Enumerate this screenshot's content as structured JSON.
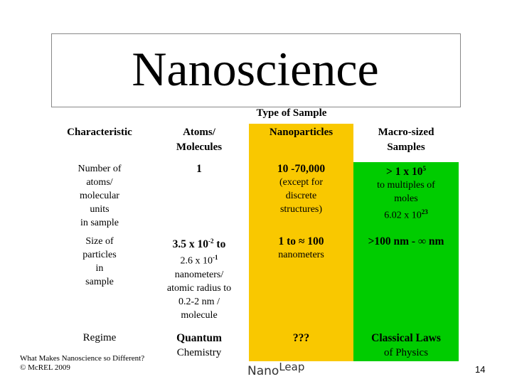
{
  "title": "Nanoscience",
  "table": {
    "group_header": "Type of Sample",
    "rows": [
      [
        [
          [
            "Characteristic"
          ]
        ],
        [
          [
            "Atoms/"
          ],
          [
            "Molecules"
          ]
        ],
        [
          [
            "Nanoparticles"
          ]
        ],
        [
          [
            "Macro-sized"
          ],
          [
            "Samples"
          ]
        ]
      ],
      [
        [
          [
            "Number of"
          ],
          [
            "atoms/"
          ],
          [
            "molecular"
          ],
          [
            "units"
          ],
          [
            "in sample"
          ]
        ],
        [
          [
            "1"
          ]
        ],
        [
          [
            "10 -70,000"
          ],
          [
            "(except for"
          ],
          [
            "discrete"
          ],
          [
            "structures)"
          ]
        ],
        [
          [
            "> 1 x 10",
            "5"
          ],
          [
            "to multiples of"
          ],
          [
            "moles"
          ],
          [
            "6.02 x 10",
            "23"
          ]
        ]
      ],
      [
        [
          [
            "Size of"
          ],
          [
            "particles"
          ],
          [
            "in"
          ],
          [
            "sample"
          ]
        ],
        [
          [
            "3.5 x 10",
            "-2",
            " to"
          ],
          [
            "2.6 x 10",
            "-1"
          ],
          [
            "nanometers/"
          ],
          [
            "atomic radius to"
          ],
          [
            "0.2-2 nm /"
          ],
          [
            "molecule"
          ]
        ],
        [
          [
            "1 to ≈ 100"
          ],
          [
            "nanometers"
          ]
        ],
        [
          [
            ">100 nm - ∞ nm"
          ]
        ]
      ],
      [
        [
          [
            "Regime"
          ]
        ],
        [
          [
            "Quantum"
          ],
          [
            "Chemistry"
          ]
        ],
        [
          [
            "???"
          ]
        ],
        [
          [
            "Classical Laws"
          ],
          [
            "of Physics"
          ]
        ]
      ]
    ]
  },
  "footer": {
    "lines": [
      "What Makes Nanoscience so Different?",
      "© McREL 2009"
    ],
    "logo": [
      "Nano",
      "Leap"
    ],
    "page": "14"
  }
}
